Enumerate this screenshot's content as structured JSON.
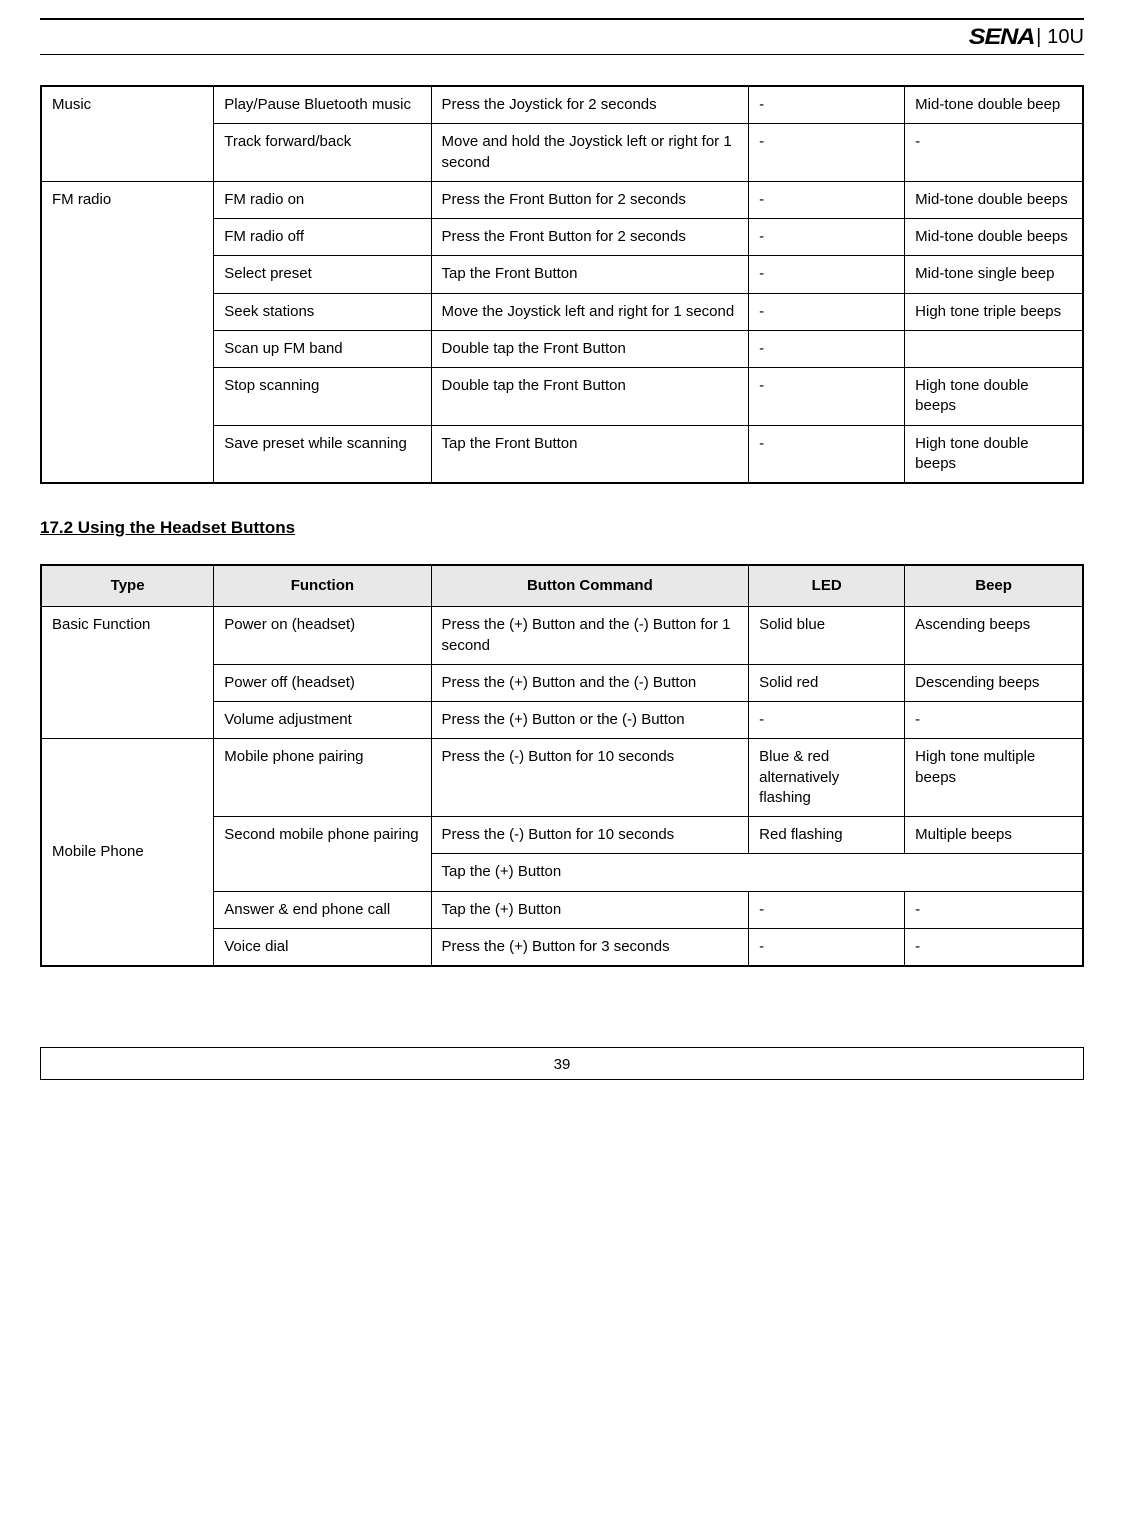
{
  "header": {
    "brand": "SENA",
    "model": "10U"
  },
  "table1": {
    "groups": [
      {
        "type": "Music",
        "rows": [
          {
            "func": "Play/Pause Bluetooth music",
            "cmd": "Press the Joystick for 2 seconds",
            "led": "-",
            "beep": "Mid-tone double beep"
          },
          {
            "func": "Track forward/back",
            "cmd": "Move and hold the Joystick left or right for 1 second",
            "led": "-",
            "beep": "-"
          }
        ]
      },
      {
        "type": "FM radio",
        "rows": [
          {
            "func": "FM radio on",
            "cmd": "Press the Front Button for 2 seconds",
            "led": "-",
            "beep": "Mid-tone double beeps"
          },
          {
            "func": "FM radio off",
            "cmd": "Press the Front Button for 2 seconds",
            "led": "-",
            "beep": "Mid-tone double beeps"
          },
          {
            "func": "Select preset",
            "cmd": "Tap the Front Button",
            "led": "-",
            "beep": "Mid-tone single beep"
          },
          {
            "func": "Seek stations",
            "cmd": "Move the Joystick left and right for 1 second",
            "led": "-",
            "beep": "High tone triple beeps"
          },
          {
            "func": "Scan up FM band",
            "cmd": "Double tap the Front Button",
            "led": "-",
            "beep": ""
          },
          {
            "func": "Stop scanning",
            "cmd": "Double tap the Front Button",
            "led": "-",
            "beep": "High tone double beeps"
          },
          {
            "func": "Save preset while scanning",
            "cmd": "Tap the Front Button",
            "led": "-",
            "beep": "High tone double beeps"
          }
        ]
      }
    ]
  },
  "section_title": "17.2 Using the Headset Buttons",
  "table2": {
    "headers": {
      "type": "Type",
      "func": "Function",
      "cmd": "Button Command",
      "led": "LED",
      "beep": "Beep"
    },
    "groups": [
      {
        "type": "Basic Function",
        "rows": [
          {
            "func": "Power on (headset)",
            "cmd": "Press the (+) Button and the (-) Button for 1 second",
            "cmd_justify": true,
            "led": "Solid blue",
            "beep": "Ascending beeps"
          },
          {
            "func": "Power off (headset)",
            "cmd": "Press the (+) Button and the (-) Button",
            "cmd_justify": true,
            "led": "Solid red",
            "beep": "Descending beeps"
          },
          {
            "func": "Volume adjustment",
            "cmd": "Press the (+) Button or the (-) Button",
            "cmd_justify": true,
            "led": "-",
            "beep": "-"
          }
        ]
      },
      {
        "type": "Mobile Phone",
        "type_valign": "middle",
        "rows": [
          {
            "func": "Mobile phone pairing",
            "cmd": "Press the (-) Button for 10 seconds",
            "cmd_justify": true,
            "led": "Blue & red alternatively flashing",
            "led_justify": true,
            "beep": "High tone multiple beeps",
            "beep_justify": true
          },
          {
            "func": "Second mobile phone pairing",
            "func_rowspan": 2,
            "func_justify": true,
            "cmd": "Press the (-) Button for 10 seconds",
            "cmd_justify": true,
            "led": "Red flashing",
            "beep": "Multiple beeps"
          },
          {
            "cmd": "Tap the (+) Button",
            "cmd_colspan": 3
          },
          {
            "func": "Answer & end phone call",
            "cmd": "Tap the (+) Button",
            "led": "-",
            "beep": "-"
          },
          {
            "func": "Voice dial",
            "cmd": "Press the (+) Button for 3 seconds",
            "led": "-",
            "beep": "-"
          }
        ]
      }
    ]
  },
  "page_number": "39"
}
